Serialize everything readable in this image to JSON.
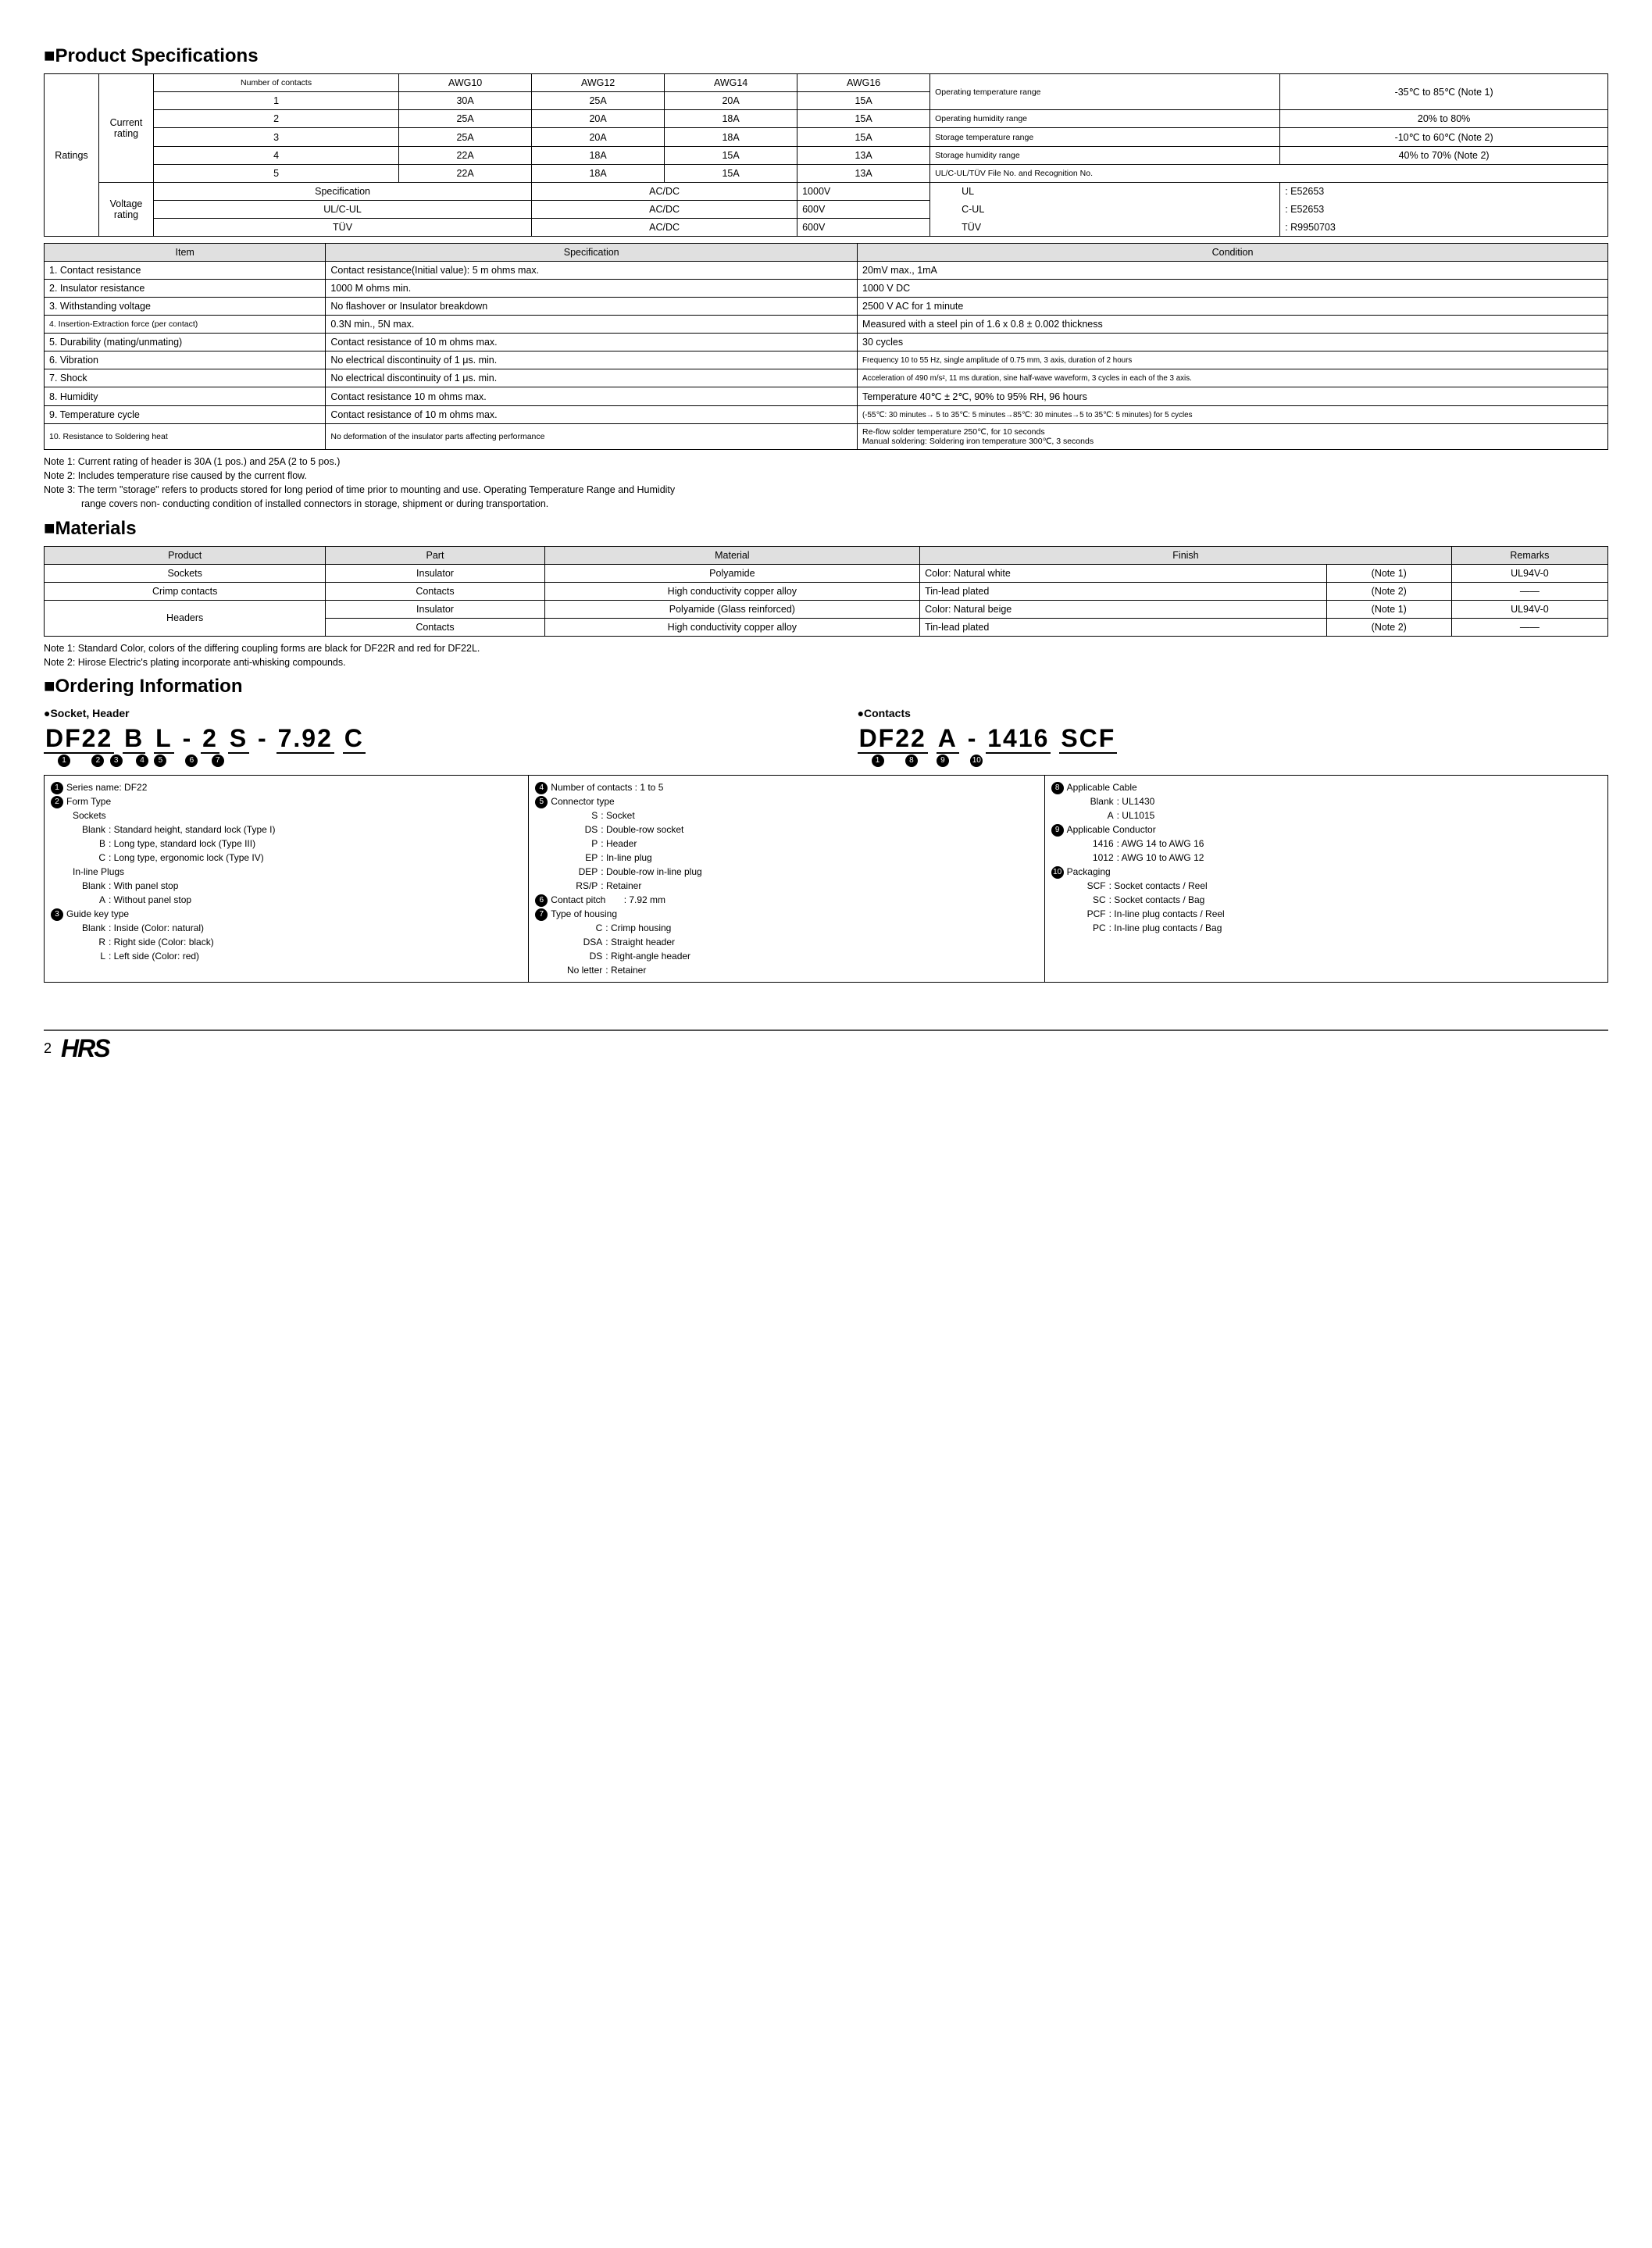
{
  "sections": {
    "spec_title": "■Product Specifications",
    "materials_title": "■Materials",
    "ordering_title": "■Ordering Information"
  },
  "ratings": {
    "col_ratings": "Ratings",
    "col_current": "Current rating",
    "col_voltage": "Voltage rating",
    "header_numcontacts": "Number of contacts",
    "awg": [
      "AWG10",
      "AWG12",
      "AWG14",
      "AWG16"
    ],
    "rows": [
      {
        "n": "1",
        "v": [
          "30A",
          "25A",
          "20A",
          "15A"
        ]
      },
      {
        "n": "2",
        "v": [
          "25A",
          "20A",
          "18A",
          "15A"
        ]
      },
      {
        "n": "3",
        "v": [
          "25A",
          "20A",
          "18A",
          "15A"
        ]
      },
      {
        "n": "4",
        "v": [
          "22A",
          "18A",
          "15A",
          "13A"
        ]
      },
      {
        "n": "5",
        "v": [
          "22A",
          "18A",
          "15A",
          "13A"
        ]
      }
    ],
    "voltage_header": "Specification",
    "voltage_rows": [
      {
        "a": "Specification",
        "b": "AC/DC",
        "c": "1000V"
      },
      {
        "a": "UL/C-UL",
        "b": "AC/DC",
        "c": "600V"
      },
      {
        "a": "TÜV",
        "b": "AC/DC",
        "c": "600V"
      }
    ],
    "env": [
      {
        "a": "Operating temperature range",
        "b": "-35℃ to 85℃ (Note 1)"
      },
      {
        "a": "Operating humidity range",
        "b": "20% to 80%"
      },
      {
        "a": "Storage temperature range",
        "b": "-10℃ to 60℃ (Note 2)"
      },
      {
        "a": "Storage humidity range",
        "b": "40% to 70% (Note 2)"
      }
    ],
    "cert_header": "UL/C-UL/TÜV    File No. and Recognition No.",
    "cert_rows": [
      {
        "a": "UL",
        "b": ": E52653"
      },
      {
        "a": "C-UL",
        "b": ": E52653"
      },
      {
        "a": "TÜV",
        "b": ": R9950703"
      }
    ]
  },
  "spec_table": {
    "headers": [
      "Item",
      "Specification",
      "Condition"
    ],
    "rows": [
      [
        "1. Contact resistance",
        "Contact resistance(Initial value): 5 m ohms max.",
        "20mV max., 1mA"
      ],
      [
        "2. Insulator resistance",
        "1000 M ohms min.",
        "1000 V DC"
      ],
      [
        "3. Withstanding voltage",
        "No flashover or Insulator breakdown",
        "2500 V AC for 1 minute"
      ],
      [
        "4. Insertion-Extraction force (per contact)",
        "0.3N min., 5N max.",
        "Measured with a steel pin of 1.6 x 0.8 ± 0.002 thickness"
      ],
      [
        "5. Durability (mating/unmating)",
        "Contact resistance of 10 m ohms max.",
        "30 cycles"
      ],
      [
        "6. Vibration",
        "No electrical discontinuity of 1 μs. min.",
        "Frequency 10 to 55 Hz, single amplitude of 0.75 mm, 3 axis, duration of 2 hours"
      ],
      [
        "7. Shock",
        "No electrical discontinuity of 1 μs. min.",
        "Acceleration of 490 m/s², 11 ms duration, sine half-wave waveform, 3 cycles in each of the 3 axis."
      ],
      [
        "8. Humidity",
        "Contact resistance 10 m ohms max.",
        "Temperature 40℃ ± 2℃, 90% to 95% RH, 96 hours"
      ],
      [
        "9. Temperature cycle",
        "Contact resistance of 10 m ohms max.",
        "(-55℃: 30 minutes→ 5 to 35℃: 5 minutes→85℃: 30 minutes→5 to 35℃: 5 minutes) for 5 cycles"
      ],
      [
        "10. Resistance to Soldering heat",
        "No deformation of the insulator parts affecting performance",
        "Re-flow solder temperature 250℃, for 10 seconds\nManual soldering: Soldering iron temperature 300℃, 3 seconds"
      ]
    ],
    "row4_small": true
  },
  "spec_notes": [
    "Note 1: Current rating of header is 30A (1 pos.) and 25A (2 to 5 pos.)",
    "Note 2: Includes temperature rise caused by the current flow.",
    "Note 3: The term \"storage\" refers to products stored for long period of time prior to mounting and use. Operating Temperature Range and Humidity",
    "range covers non- conducting condition of installed connectors in storage, shipment or during transportation."
  ],
  "materials": {
    "headers": [
      "Product",
      "Part",
      "Material",
      "Finish",
      "",
      "Remarks"
    ],
    "rows": [
      [
        "Sockets",
        "Insulator",
        "Polyamide",
        "Color: Natural white",
        "(Note 1)",
        "UL94V-0"
      ],
      [
        "Crimp contacts",
        "Contacts",
        "High conductivity copper alloy",
        "Tin-lead plated",
        "(Note 2)",
        "——"
      ],
      [
        "Headers",
        "Insulator",
        "Polyamide (Glass reinforced)",
        "Color: Natural beige",
        "(Note 1)",
        "UL94V-0"
      ],
      [
        "",
        "Contacts",
        "High conductivity copper alloy",
        "Tin-lead plated",
        "(Note 2)",
        "——"
      ]
    ],
    "notes": [
      "Note 1: Standard Color, colors of the differing coupling forms are black for DF22R and red for DF22L.",
      "Note 2: Hirose Electric's plating incorporate anti-whisking compounds."
    ]
  },
  "ordering": {
    "socket_head": "●Socket, Header",
    "contact_head": "●Contacts",
    "partno_socket": "DF22 B L - 2 S - 7.92 C",
    "partno_contact": "DF22 A - 1416 SCF",
    "socket_idx": [
      "❶",
      "❷",
      "❸",
      "",
      "❹",
      "❺",
      "",
      "❻",
      "❼"
    ],
    "contact_idx": [
      "❶",
      "❽",
      "",
      "❾",
      "❿"
    ],
    "defs": {
      "col1": {
        "t1": {
          "n": "❶",
          "t": "Series name: DF22"
        },
        "t2": {
          "n": "❷",
          "t": "Form Type"
        },
        "t2a": "Sockets",
        "t2rows": [
          [
            "Blank",
            ": Standard height, standard lock (Type I)"
          ],
          [
            "B",
            ": Long type, standard lock (Type III)"
          ],
          [
            "C",
            ": Long type, ergonomic lock (Type IV)"
          ]
        ],
        "t2b": "In-line Plugs",
        "t2brows": [
          [
            "Blank",
            ": With panel stop"
          ],
          [
            "A",
            ": Without panel stop"
          ]
        ],
        "t3": {
          "n": "❸",
          "t": "Guide key type"
        },
        "t3rows": [
          [
            "Blank",
            ": Inside (Color: natural)"
          ],
          [
            "R",
            ": Right side (Color: black)"
          ],
          [
            "L",
            ": Left side (Color: red)"
          ]
        ]
      },
      "col2": {
        "t4": {
          "n": "❹",
          "t": "Number of contacts : 1 to 5"
        },
        "t5": {
          "n": "❺",
          "t": "Connector type"
        },
        "t5rows": [
          [
            "S",
            ": Socket"
          ],
          [
            "DS",
            ": Double-row socket"
          ],
          [
            "P",
            ": Header"
          ],
          [
            "EP",
            ": In-line plug"
          ],
          [
            "DEP",
            ": Double-row in-line plug"
          ],
          [
            "RS/P",
            ": Retainer"
          ]
        ],
        "t6": {
          "n": "❻",
          "t": "Contact pitch"
        },
        "t6v": ": 7.92 mm",
        "t7": {
          "n": "❼",
          "t": "Type of housing"
        },
        "t7rows": [
          [
            "C",
            ": Crimp housing"
          ],
          [
            "DSA",
            ": Straight header"
          ],
          [
            "DS",
            ": Right-angle header"
          ],
          [
            "No letter",
            ": Retainer"
          ]
        ]
      },
      "col3": {
        "t8": {
          "n": "❽",
          "t": "Applicable Cable"
        },
        "t8rows": [
          [
            "Blank",
            ": UL1430"
          ],
          [
            "A",
            ": UL1015"
          ]
        ],
        "t9": {
          "n": "❾",
          "t": "Applicable Conductor"
        },
        "t9rows": [
          [
            "1416",
            ": AWG 14 to AWG 16"
          ],
          [
            "1012",
            ": AWG 10 to AWG 12"
          ]
        ],
        "t10": {
          "n": "❿",
          "t": "Packaging"
        },
        "t10rows": [
          [
            "SCF",
            ": Socket contacts / Reel"
          ],
          [
            "SC",
            ": Socket contacts / Bag"
          ],
          [
            "PCF",
            ": In-line plug contacts / Reel"
          ],
          [
            "PC",
            ": In-line plug contacts / Bag"
          ]
        ]
      }
    }
  },
  "footer": {
    "page": "2",
    "logo": "HRS"
  }
}
